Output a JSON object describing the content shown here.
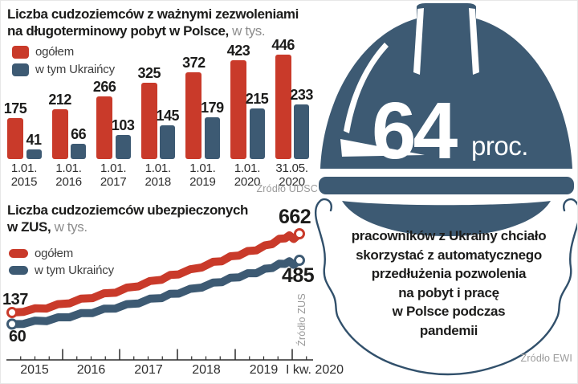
{
  "colors": {
    "red": "#c93a2a",
    "steel_blue": "#3d5a73",
    "text_dark": "#1c1c1b",
    "text_gray": "#8d8d8d",
    "source_gray": "#9b9b9b",
    "axis": "#2b2b2b",
    "white": "#ffffff"
  },
  "chart_data": [
    {
      "type": "bar",
      "title_line1": "Liczba cudzoziemców z ważnymi zezwoleniami",
      "title_line2_bold": "na długoterminowy pobyt w Polsce,",
      "title_unit": " w tys.",
      "categories": [
        "1.01.2015",
        "1.01.2016",
        "1.01.2017",
        "1.01.2018",
        "1.01.2019",
        "1.01.2020",
        "31.05.2020"
      ],
      "categories_line1": [
        "1.01.",
        "1.01.",
        "1.01.",
        "1.01.",
        "1.01.",
        "1.01.",
        "31.05."
      ],
      "categories_line2": [
        "2015",
        "2016",
        "2017",
        "2018",
        "2019",
        "2020",
        "2020"
      ],
      "series": [
        {
          "name": "ogółem",
          "color": "#c93a2a",
          "values": [
            175,
            212,
            266,
            325,
            372,
            423,
            446
          ]
        },
        {
          "name": "w tym Ukraińcy",
          "color": "#3d5a73",
          "values": [
            41,
            66,
            103,
            145,
            179,
            215,
            233
          ]
        }
      ],
      "ylim": [
        0,
        460
      ],
      "grid": false,
      "legend_position": "top-left",
      "source": "Źródło UDSC"
    },
    {
      "type": "line",
      "title_line1": "Liczba cudzoziemców ubezpieczonych",
      "title_line2_bold": "w ZUS,",
      "title_unit": " w tys.",
      "x_tick_labels": [
        "2015",
        "2016",
        "2017",
        "2018",
        "2019",
        "I kw. 2020"
      ],
      "x_range": [
        "2015",
        "I kw. 2020"
      ],
      "grid": false,
      "legend_position": "left",
      "source": "Źródło ZUS",
      "series": [
        {
          "name": "ogółem",
          "color": "#c93a2a",
          "start_value": 137,
          "end_value": 662,
          "start_label": "137",
          "end_label": "662",
          "points_est": [
            [
              0,
              137
            ],
            [
              0.04,
              148
            ],
            [
              0.08,
              158
            ],
            [
              0.12,
              170
            ],
            [
              0.16,
              186
            ],
            [
              0.2,
              205
            ],
            [
              0.24,
              222
            ],
            [
              0.28,
              240
            ],
            [
              0.32,
              258
            ],
            [
              0.36,
              276
            ],
            [
              0.4,
              296
            ],
            [
              0.44,
              318
            ],
            [
              0.48,
              340
            ],
            [
              0.52,
              362
            ],
            [
              0.55,
              380
            ],
            [
              0.58,
              398
            ],
            [
              0.62,
              418
            ],
            [
              0.66,
              444
            ],
            [
              0.7,
              468
            ],
            [
              0.73,
              486
            ],
            [
              0.76,
              505
            ],
            [
              0.79,
              524
            ],
            [
              0.82,
              540
            ],
            [
              0.85,
              558
            ],
            [
              0.88,
              578
            ],
            [
              0.905,
              600
            ],
            [
              0.93,
              622
            ],
            [
              0.95,
              638
            ],
            [
              0.965,
              645
            ],
            [
              0.98,
              634
            ],
            [
              1,
              662
            ]
          ]
        },
        {
          "name": "w tym Ukraińcy",
          "color": "#3d5a73",
          "start_value": 60,
          "end_value": 485,
          "start_label": "60",
          "end_label": "485",
          "points_est": [
            [
              0,
              60
            ],
            [
              0.04,
              68
            ],
            [
              0.08,
              76
            ],
            [
              0.12,
              86
            ],
            [
              0.16,
              98
            ],
            [
              0.2,
              112
            ],
            [
              0.24,
              126
            ],
            [
              0.28,
              140
            ],
            [
              0.32,
              155
            ],
            [
              0.36,
              170
            ],
            [
              0.4,
              186
            ],
            [
              0.44,
              204
            ],
            [
              0.48,
              222
            ],
            [
              0.52,
              240
            ],
            [
              0.55,
              255
            ],
            [
              0.58,
              270
            ],
            [
              0.62,
              288
            ],
            [
              0.66,
              310
            ],
            [
              0.7,
              330
            ],
            [
              0.73,
              346
            ],
            [
              0.76,
              362
            ],
            [
              0.79,
              378
            ],
            [
              0.82,
              392
            ],
            [
              0.85,
              406
            ],
            [
              0.88,
              422
            ],
            [
              0.905,
              440
            ],
            [
              0.93,
              456
            ],
            [
              0.95,
              468
            ],
            [
              0.965,
              472
            ],
            [
              0.98,
              462
            ],
            [
              1,
              485
            ]
          ]
        }
      ]
    }
  ],
  "helmet": {
    "number": "64",
    "unit": "proc.",
    "caption_lines": [
      "pracowników z Ukrainy chciało",
      "skorzystać z automatycznego",
      "przedłużenia pozwolenia",
      "na pobyt i pracę",
      "w Polsce podczas",
      "pandemii"
    ],
    "source": "Źródło EWI"
  }
}
